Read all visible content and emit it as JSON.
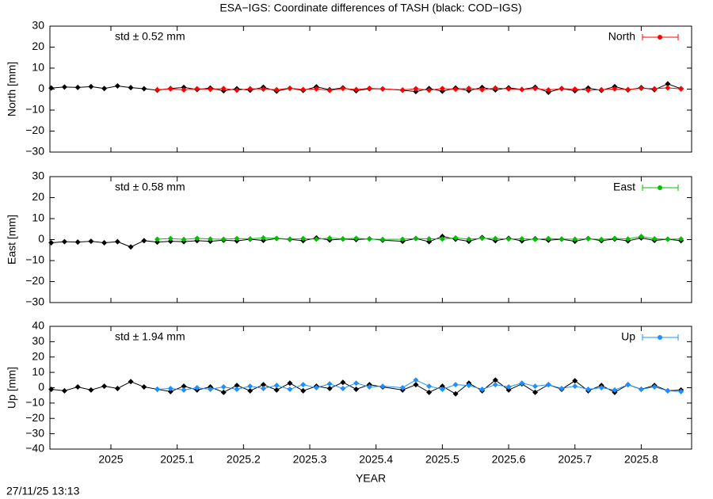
{
  "title": "ESA−IGS: Coordinate differences of TASH (black: COD−IGS)",
  "timestamp": "27/11/25 13:13",
  "chart_data": [
    {
      "type": "line",
      "ylabel": "North [mm]",
      "annotation": "std ± 0.52 mm",
      "xlim": [
        2024.908,
        2025.876
      ],
      "xticks": [
        2025,
        2025.1,
        2025.2,
        2025.3,
        2025.4,
        2025.5,
        2025.6,
        2025.7,
        2025.8
      ],
      "ylim": [
        -30,
        30
      ],
      "yticks": [
        {
          "value": -30,
          "label": "−30"
        },
        {
          "value": -20,
          "label": "−20"
        },
        {
          "value": -10,
          "label": "−10"
        },
        0,
        10,
        20,
        30
      ],
      "x": [
        2024.91,
        2024.93,
        2024.95,
        2024.97,
        2024.99,
        2025.01,
        2025.03,
        2025.05,
        2025.07,
        2025.09,
        2025.11,
        2025.13,
        2025.15,
        2025.17,
        2025.19,
        2025.21,
        2025.23,
        2025.25,
        2025.27,
        2025.29,
        2025.31,
        2025.33,
        2025.35,
        2025.37,
        2025.39,
        2025.41,
        2025.44,
        2025.46,
        2025.48,
        2025.5,
        2025.52,
        2025.54,
        2025.56,
        2025.58,
        2025.6,
        2025.62,
        2025.64,
        2025.66,
        2025.68,
        2025.7,
        2025.72,
        2025.74,
        2025.76,
        2025.78,
        2025.8,
        2025.82,
        2025.84,
        2025.86
      ],
      "series": [
        {
          "color": "#000000",
          "values": [
            0.5,
            1,
            0.8,
            1.2,
            0.3,
            1.5,
            0.7,
            0.2,
            -0.5,
            0.3,
            0.8,
            -0.2,
            0.5,
            -0.8,
            0.2,
            -0.5,
            0.9,
            -1,
            0.4,
            -0.6,
            1.1,
            -0.3,
            0.6,
            -0.8,
            0.2,
            0.1,
            -0.5,
            -1.2,
            0.3,
            -1,
            0.5,
            -0.7,
            0.8,
            -0.4,
            0.6,
            -0.2,
            0.9,
            -1.5,
            0.3,
            -0.8,
            0.5,
            -0.6,
            1.2,
            -0.4,
            0.7,
            -0.3,
            2.5,
            0.2
          ]
        },
        {
          "name": "North",
          "color": "#ff0000",
          "values": [
            null,
            null,
            null,
            null,
            null,
            null,
            null,
            null,
            -0.3,
            0.1,
            -0.4,
            0.2,
            -0.1,
            0.3,
            -0.5,
            0.2,
            0,
            -0.3,
            0.4,
            -0.2,
            0.1,
            -0.6,
            0.3,
            -0.2,
            0.4,
            0.1,
            -0.4,
            0.2,
            -0.5,
            0.3,
            -0.1,
            0.4,
            -0.3,
            0.5,
            0.1,
            -0.2,
            0.3,
            -0.4,
            0.2,
            0,
            -0.5,
            -0.3,
            0.1,
            -0.2,
            0.4,
            0.2,
            0.6,
            0.1
          ]
        }
      ]
    },
    {
      "type": "line",
      "ylabel": "East [mm]",
      "annotation": "std ± 0.58 mm",
      "xlim": [
        2024.908,
        2025.876
      ],
      "xticks": [
        2025,
        2025.1,
        2025.2,
        2025.3,
        2025.4,
        2025.5,
        2025.6,
        2025.7,
        2025.8
      ],
      "ylim": [
        -30,
        30
      ],
      "yticks": [
        {
          "value": -30,
          "label": "−30"
        },
        {
          "value": -20,
          "label": "−20"
        },
        {
          "value": -10,
          "label": "−10"
        },
        0,
        10,
        20,
        30
      ],
      "x": [
        2024.91,
        2024.93,
        2024.95,
        2024.97,
        2024.99,
        2025.01,
        2025.03,
        2025.05,
        2025.07,
        2025.09,
        2025.11,
        2025.13,
        2025.15,
        2025.17,
        2025.19,
        2025.21,
        2025.23,
        2025.25,
        2025.27,
        2025.29,
        2025.31,
        2025.33,
        2025.35,
        2025.37,
        2025.39,
        2025.41,
        2025.44,
        2025.46,
        2025.48,
        2025.5,
        2025.52,
        2025.54,
        2025.56,
        2025.58,
        2025.6,
        2025.62,
        2025.64,
        2025.66,
        2025.68,
        2025.7,
        2025.72,
        2025.74,
        2025.76,
        2025.78,
        2025.8,
        2025.82,
        2025.84,
        2025.86
      ],
      "series": [
        {
          "color": "#000000",
          "values": [
            -1.5,
            -1,
            -1.2,
            -0.8,
            -1.5,
            -1,
            -3.5,
            -0.5,
            -1.2,
            -0.8,
            -1,
            -0.5,
            -0.8,
            -0.3,
            -0.6,
            0.2,
            -0.4,
            0.5,
            0.1,
            -0.5,
            0.8,
            -0.2,
            0.3,
            0,
            0.4,
            -0.3,
            -0.8,
            0.5,
            -1,
            1.5,
            0.2,
            -0.8,
            1,
            -0.5,
            0.6,
            -0.6,
            0.4,
            -0.3,
            0.2,
            -0.8,
            0.5,
            -0.5,
            0.3,
            -0.6,
            0.8,
            -0.4,
            0.2,
            -0.5
          ]
        },
        {
          "name": "East",
          "color": "#00c000",
          "values": [
            null,
            null,
            null,
            null,
            null,
            null,
            null,
            null,
            0.2,
            0.5,
            0.1,
            0.6,
            0.3,
            0.2,
            0.5,
            0.4,
            0.8,
            0.6,
            0.3,
            0.5,
            0.2,
            0.7,
            0.4,
            0.6,
            0.3,
            0.1,
            0.2,
            0.5,
            0.4,
            0.3,
            0.8,
            0.2,
            0.6,
            0.5,
            0.3,
            0.4,
            0.1,
            0.5,
            0.3,
            0.2,
            0.4,
            0.1,
            0.6,
            0.3,
            1.5,
            0.4,
            0.2,
            0.3
          ]
        }
      ]
    },
    {
      "type": "line",
      "ylabel": "Up [mm]",
      "xlabel": "YEAR",
      "annotation": "std ± 1.94 mm",
      "xlim": [
        2024.908,
        2025.876
      ],
      "xticks": [
        2025,
        2025.1,
        2025.2,
        2025.3,
        2025.4,
        2025.5,
        2025.6,
        2025.7,
        2025.8
      ],
      "ylim": [
        -40,
        40
      ],
      "yticks": [
        {
          "value": -40,
          "label": "−40"
        },
        {
          "value": -30,
          "label": "−30"
        },
        {
          "value": -20,
          "label": "−20"
        },
        {
          "value": -10,
          "label": "−10"
        },
        0,
        10,
        20,
        30,
        40
      ],
      "x": [
        2024.91,
        2024.93,
        2024.95,
        2024.97,
        2024.99,
        2025.01,
        2025.03,
        2025.05,
        2025.07,
        2025.09,
        2025.11,
        2025.13,
        2025.15,
        2025.17,
        2025.19,
        2025.21,
        2025.23,
        2025.25,
        2025.27,
        2025.29,
        2025.31,
        2025.33,
        2025.35,
        2025.37,
        2025.39,
        2025.41,
        2025.44,
        2025.46,
        2025.48,
        2025.5,
        2025.52,
        2025.54,
        2025.56,
        2025.58,
        2025.6,
        2025.62,
        2025.64,
        2025.66,
        2025.68,
        2025.7,
        2025.72,
        2025.74,
        2025.76,
        2025.78,
        2025.8,
        2025.82,
        2025.84,
        2025.86
      ],
      "series": [
        {
          "color": "#000000",
          "values": [
            -1,
            -2,
            0.5,
            -1.5,
            1,
            -0.5,
            4,
            0.5,
            -1,
            -2.5,
            1,
            -1.5,
            0.5,
            -3,
            1.5,
            -2,
            2,
            -1.5,
            3,
            -2,
            1,
            -0.5,
            3.5,
            -1,
            2,
            0.5,
            -1.5,
            2,
            -3,
            1,
            -4,
            3,
            -2,
            5,
            -1.5,
            2.5,
            -3,
            2,
            -1,
            4.5,
            -2,
            1.5,
            -3,
            2,
            -1,
            1.5,
            -2,
            -1.5
          ]
        },
        {
          "name": "Up",
          "color": "#1e90ff",
          "values": [
            null,
            null,
            null,
            null,
            null,
            null,
            null,
            null,
            -1,
            -0.5,
            -1.5,
            0,
            -1,
            0.5,
            -1,
            1,
            -0.5,
            1.5,
            -1,
            2,
            0,
            2.5,
            -0.5,
            3,
            0.5,
            1,
            0,
            5,
            1,
            -1,
            2,
            1.5,
            -1,
            2,
            0.5,
            3,
            1,
            2,
            -0.5,
            1,
            -1,
            0,
            -1.5,
            2,
            -1,
            0.5,
            -2,
            -2.5
          ]
        }
      ]
    }
  ]
}
